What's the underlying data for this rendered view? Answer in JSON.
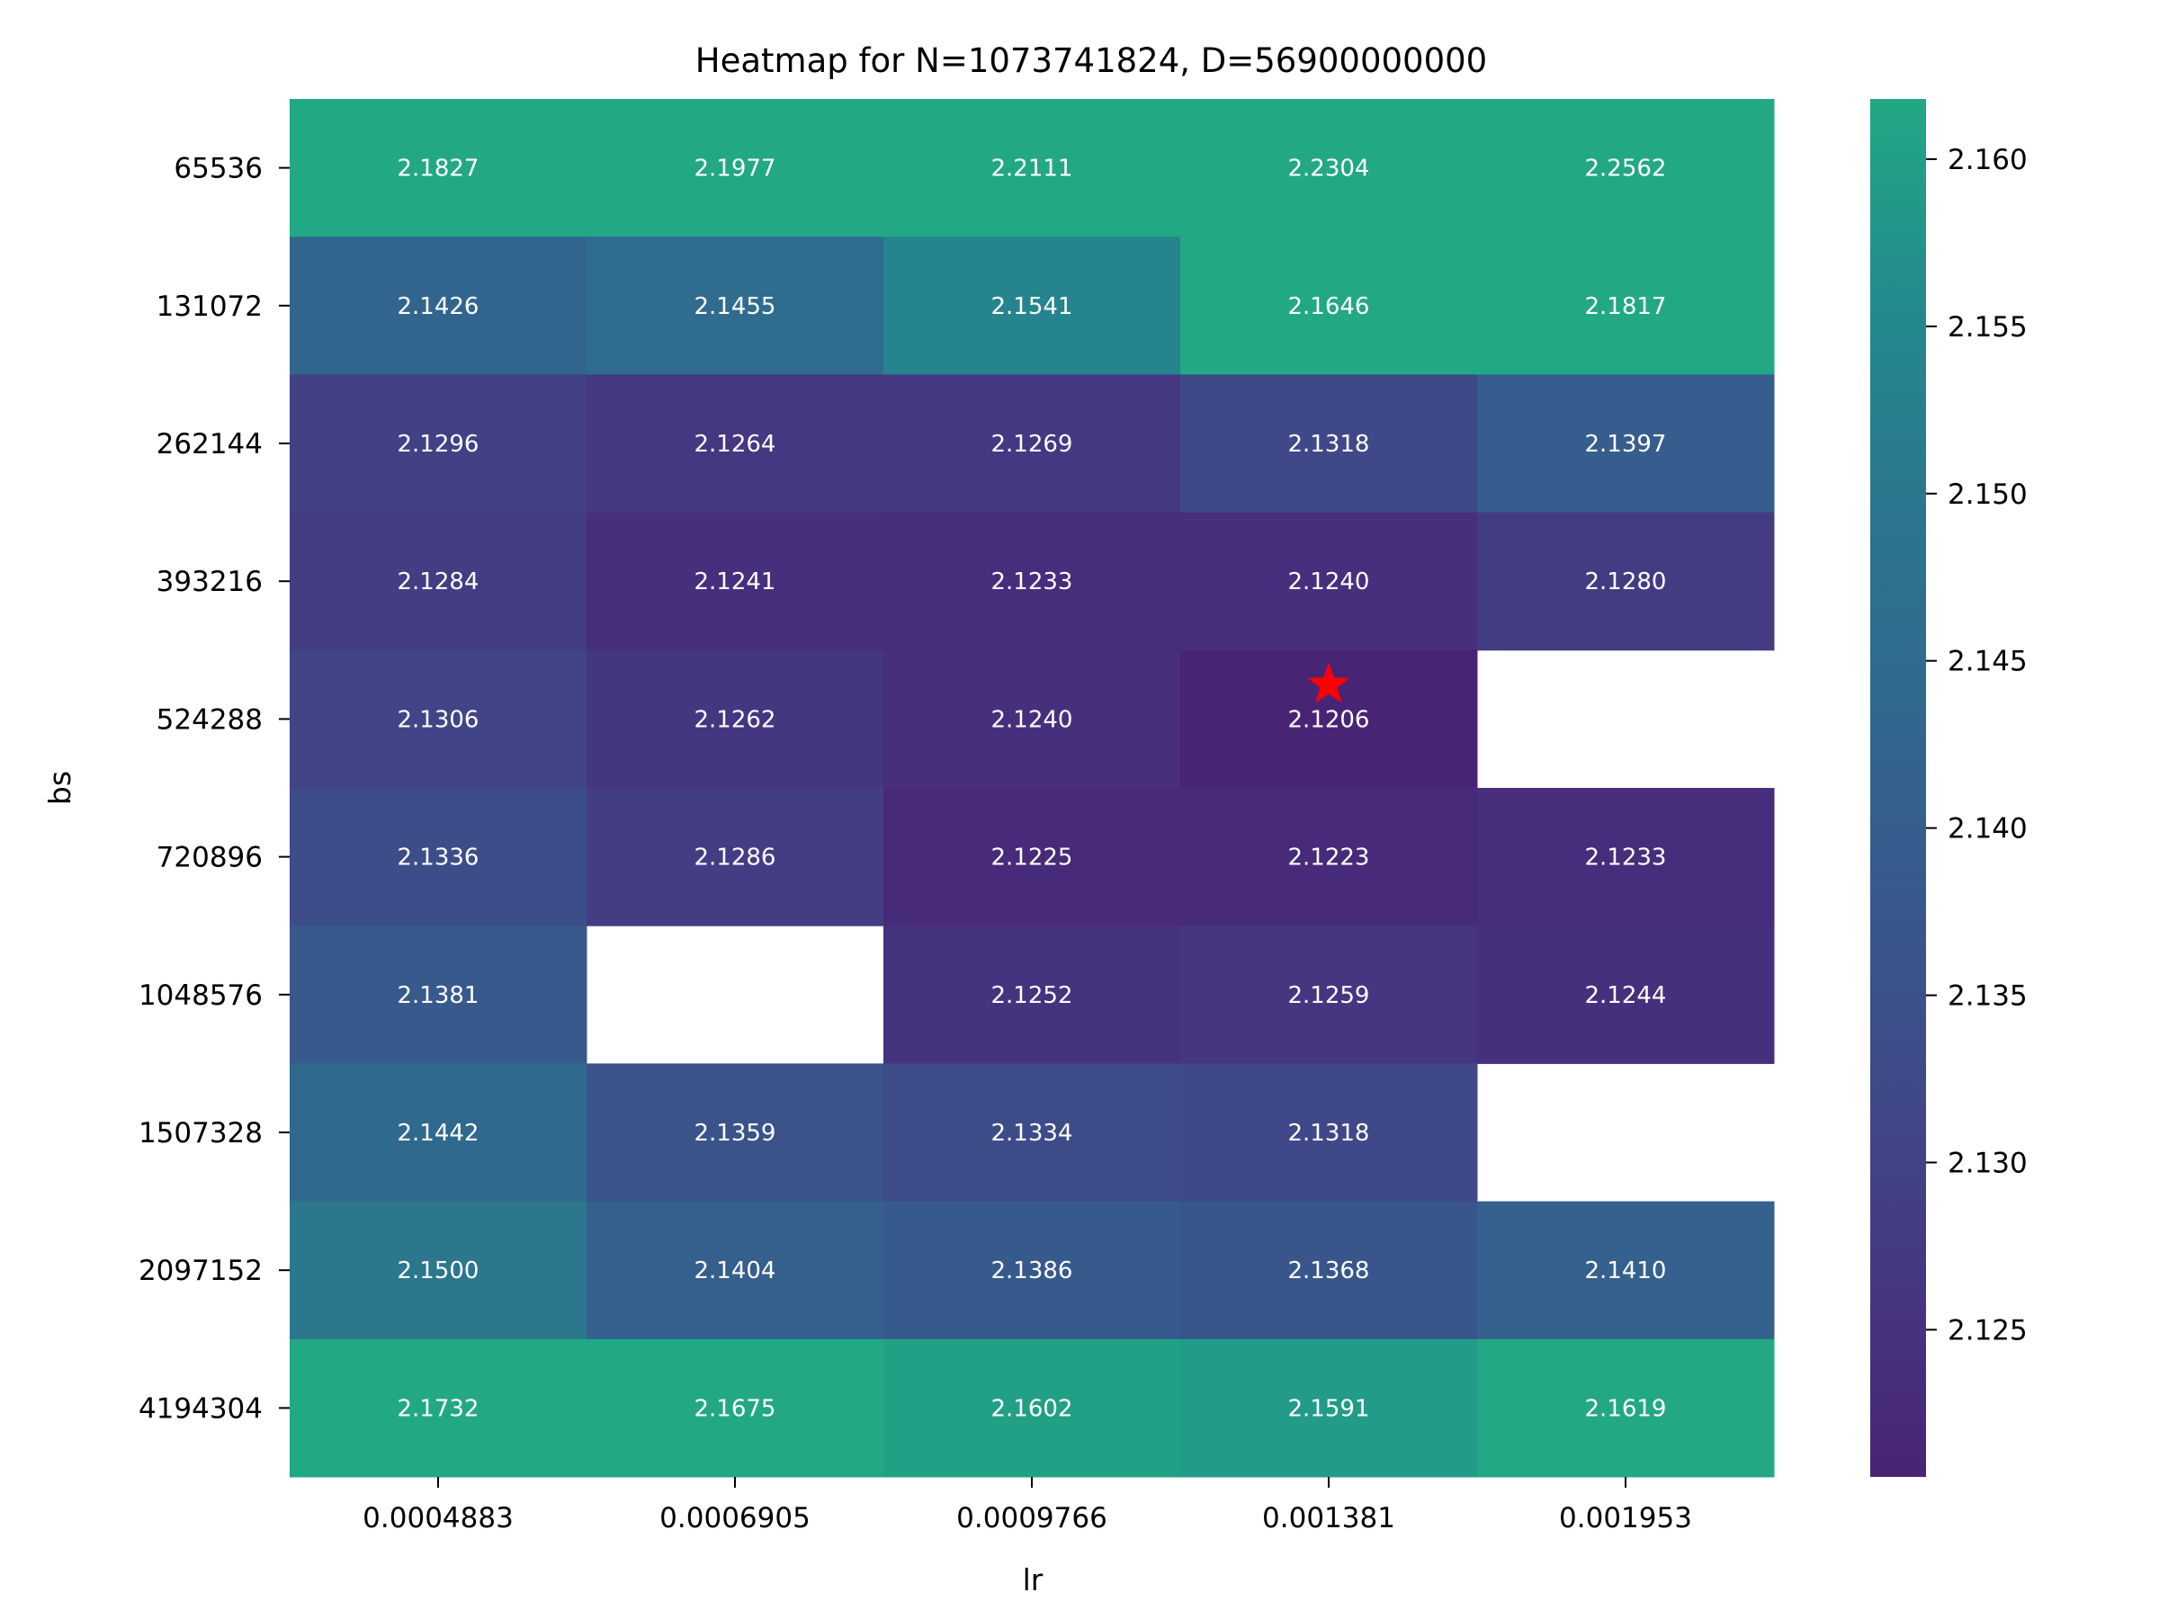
{
  "chart_data": {
    "type": "heatmap",
    "title": "Heatmap for N=1073741824, D=56900000000",
    "xlabel": "lr",
    "ylabel": "bs",
    "x_categories": [
      "0.0004883",
      "0.0006905",
      "0.0009766",
      "0.001381",
      "0.001953"
    ],
    "y_categories": [
      "65536",
      "131072",
      "262144",
      "393216",
      "524288",
      "720896",
      "1048576",
      "1507328",
      "2097152",
      "4194304"
    ],
    "values": [
      [
        2.1827,
        2.1977,
        2.2111,
        2.2304,
        2.2562
      ],
      [
        2.1426,
        2.1455,
        2.1541,
        2.1646,
        2.1817
      ],
      [
        2.1296,
        2.1264,
        2.1269,
        2.1318,
        2.1397
      ],
      [
        2.1284,
        2.1241,
        2.1233,
        2.124,
        2.128
      ],
      [
        2.1306,
        2.1262,
        2.124,
        2.1206,
        null
      ],
      [
        2.1336,
        2.1286,
        2.1225,
        2.1223,
        2.1233
      ],
      [
        2.1381,
        null,
        2.1252,
        2.1259,
        2.1244
      ],
      [
        2.1442,
        2.1359,
        2.1334,
        2.1318,
        null
      ],
      [
        2.15,
        2.1404,
        2.1386,
        2.1368,
        2.141
      ],
      [
        2.1732,
        2.1675,
        2.1602,
        2.1591,
        2.1619
      ]
    ],
    "value_format_decimals": 4,
    "color_range": [
      2.1206,
      2.1618
    ],
    "colorbar": {
      "ticks": [
        "2.125",
        "2.130",
        "2.135",
        "2.140",
        "2.145",
        "2.150",
        "2.155",
        "2.160"
      ],
      "colormap": "viridis"
    },
    "marker": {
      "shape": "star",
      "color": "#ff0000",
      "row": 4,
      "col": 3
    },
    "grid": false,
    "missing_cell_color": "#ffffff"
  }
}
